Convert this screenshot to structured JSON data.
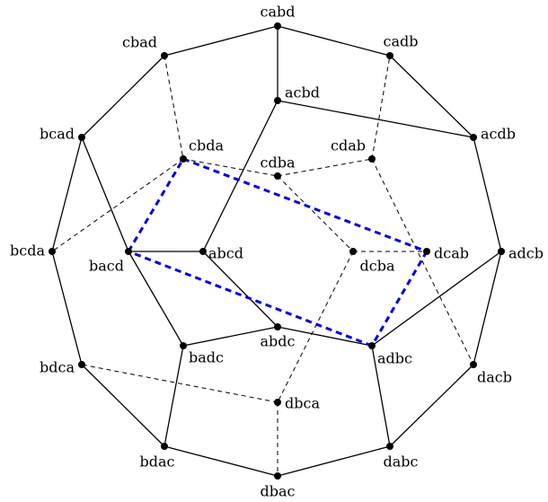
{
  "nodes": [
    {
      "label": "cabd"
    },
    {
      "label": "cadb"
    },
    {
      "label": "acdb"
    },
    {
      "label": "adcb"
    },
    {
      "label": "dacb"
    },
    {
      "label": "dabc"
    },
    {
      "label": "dbac"
    },
    {
      "label": "bdac"
    },
    {
      "label": "bdca"
    },
    {
      "label": "bcda"
    },
    {
      "label": "bcad"
    },
    {
      "label": "cbad"
    },
    {
      "label": "acbd"
    },
    {
      "label": "cbda"
    },
    {
      "label": "cdab"
    },
    {
      "label": "cdba"
    },
    {
      "label": "bacd"
    },
    {
      "label": "abcd"
    },
    {
      "label": "dcba"
    },
    {
      "label": "dcab"
    },
    {
      "label": "badc"
    },
    {
      "label": "abdc"
    },
    {
      "label": "adbc"
    },
    {
      "label": "dbca"
    }
  ]
}
